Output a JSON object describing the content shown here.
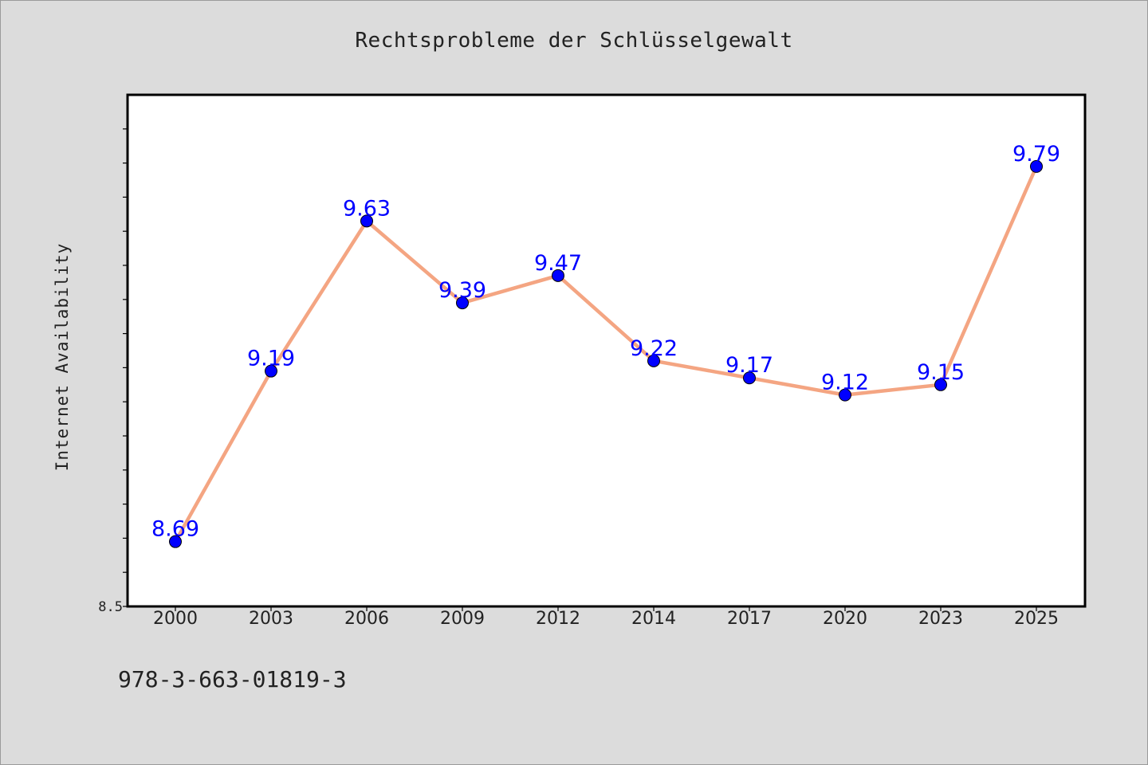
{
  "chart_data": {
    "type": "line",
    "title": "Rechtsprobleme der Schlüsselgewalt",
    "xlabel": "",
    "ylabel": "Internet Availability",
    "categories": [
      "2000",
      "2003",
      "2006",
      "2009",
      "2012",
      "2014",
      "2017",
      "2020",
      "2023",
      "2025"
    ],
    "series": [
      {
        "values": [
          8.69,
          9.19,
          9.63,
          9.39,
          9.47,
          9.22,
          9.17,
          9.12,
          9.15,
          9.79
        ]
      }
    ],
    "ylim": [
      8.5,
      10.0
    ],
    "yticks_labeled": [
      "8.5"
    ],
    "grid": false,
    "legend": "none",
    "data_labels": true,
    "colors": {
      "line": "#f4a582",
      "marker": "#0000ff",
      "label": "#0000ff",
      "background": "#dcdcdc",
      "plot_background": "#ffffff"
    }
  },
  "footer": {
    "isbn": "978-3-663-01819-3"
  }
}
